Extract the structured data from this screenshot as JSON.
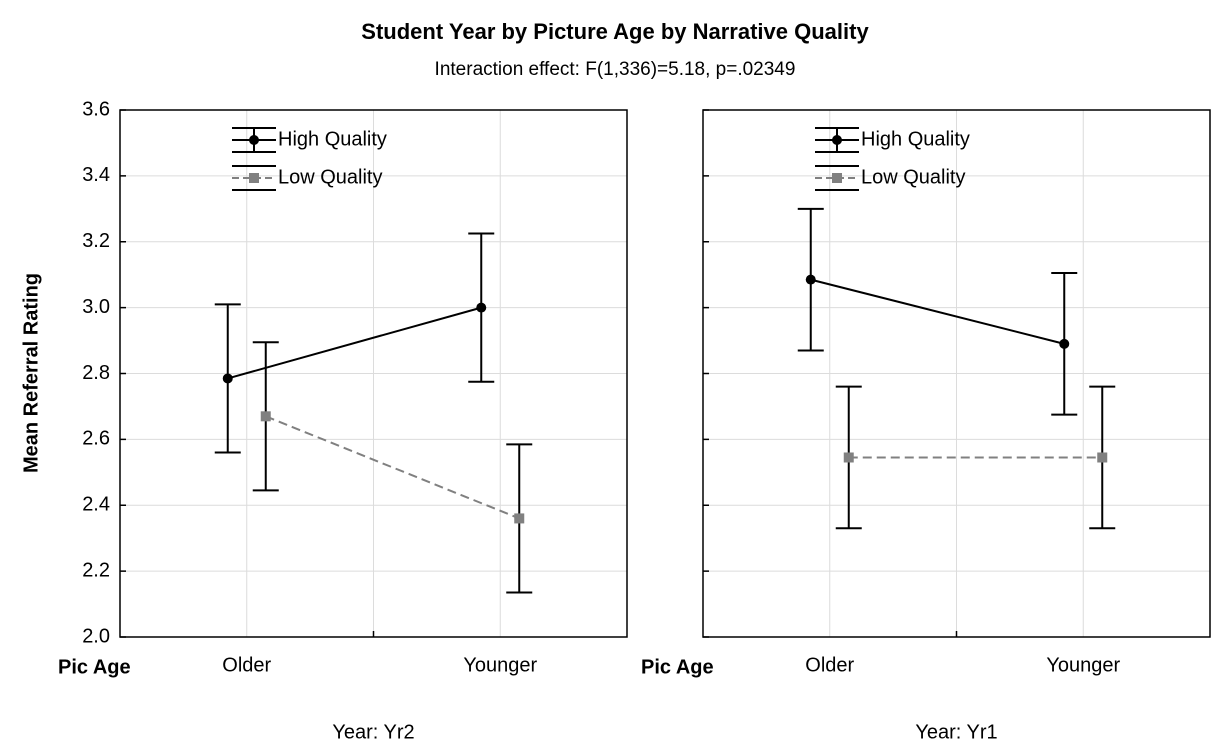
{
  "title": "Student Year by Picture Age by Narrative Quality",
  "subtitle": "Interaction effect: F(1,336)=5.18, p=.02349",
  "y_label": "Mean Referral Rating",
  "chart_data": [
    {
      "type": "line",
      "caption": "Year: Yr2",
      "xlabel": "Pic Age",
      "categories": [
        "Older",
        "Younger"
      ],
      "ylim": [
        2.0,
        3.6
      ],
      "yticks": [
        {
          "value": 2.0,
          "label": "2.0"
        },
        2.2,
        2.4,
        2.6,
        2.8,
        {
          "value": 3.0,
          "label": "3.0"
        },
        3.2,
        3.4,
        3.6
      ],
      "ytick_labels": true,
      "grid": true,
      "series": [
        {
          "name": "High Quality",
          "color": "#000000",
          "marker": "circle",
          "dashed": false,
          "values": [
            2.785,
            3.0
          ],
          "errors": [
            0.225,
            0.225
          ]
        },
        {
          "name": "Low Quality",
          "color": "#808080",
          "marker": "square",
          "dashed": true,
          "values": [
            2.67,
            2.36
          ],
          "errors": [
            0.225,
            0.225
          ]
        }
      ]
    },
    {
      "type": "line",
      "caption": "Year: Yr1",
      "xlabel": "Pic Age",
      "categories": [
        "Older",
        "Younger"
      ],
      "ylim": [
        2.0,
        3.6
      ],
      "yticks": [
        2.0,
        2.2,
        2.4,
        2.6,
        2.8,
        3.0,
        3.2,
        3.4,
        3.6
      ],
      "ytick_labels": false,
      "grid": true,
      "series": [
        {
          "name": "High Quality",
          "color": "#000000",
          "marker": "circle",
          "dashed": false,
          "values": [
            3.085,
            2.89
          ],
          "errors": [
            0.215,
            0.215
          ]
        },
        {
          "name": "Low Quality",
          "color": "#808080",
          "marker": "square",
          "dashed": true,
          "values": [
            2.545,
            2.545
          ],
          "errors": [
            0.215,
            0.215
          ]
        }
      ]
    }
  ]
}
